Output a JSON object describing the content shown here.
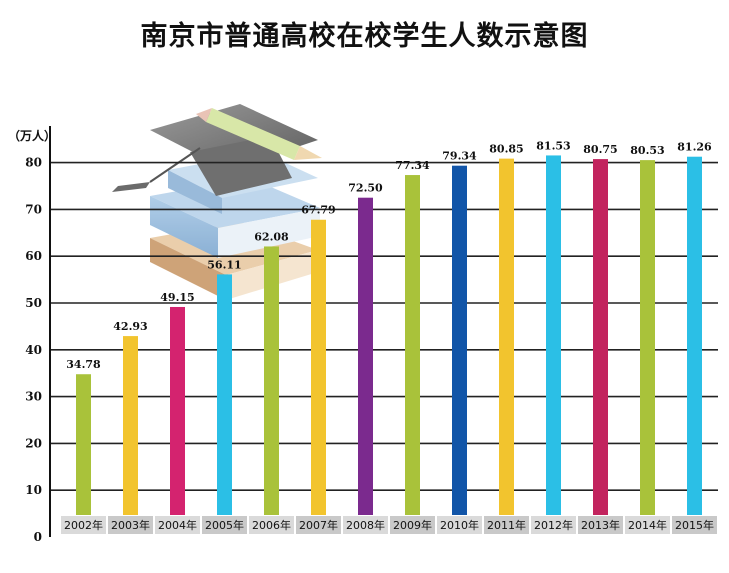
{
  "chart_data": {
    "type": "bar",
    "title": "南京市普通高校在校学生人数示意图",
    "ylabel": "（万人）",
    "xlabel": "",
    "ylim": [
      0,
      90
    ],
    "yticks": [
      0,
      10,
      20,
      30,
      40,
      50,
      60,
      70,
      80
    ],
    "grid": true,
    "legend": "none",
    "categories": [
      "2002年",
      "2003年",
      "2004年",
      "2005年",
      "2006年",
      "2007年",
      "2008年",
      "2009年",
      "2010年",
      "2011年",
      "2012年",
      "2013年",
      "2014年",
      "2015年"
    ],
    "values": [
      34.78,
      42.93,
      49.15,
      56.11,
      62.08,
      67.79,
      72.5,
      77.34,
      79.34,
      80.85,
      81.53,
      80.75,
      80.53,
      81.26
    ],
    "value_labels": [
      "34.78",
      "42.93",
      "49.15",
      "56.11",
      "62.08",
      "67.79",
      "72.50",
      "77.34",
      "79.34",
      "80.85",
      "81.53",
      "80.75",
      "80.53",
      "81.26"
    ],
    "colors": [
      "#a9c23a",
      "#f2c42e",
      "#d4236f",
      "#2bbfe6",
      "#a9c23a",
      "#f2c42e",
      "#7b2a8e",
      "#a9c23a",
      "#1155a8",
      "#f2c42e",
      "#2bbfe6",
      "#c2245e",
      "#a9c23a",
      "#2bbfe6"
    ]
  },
  "decoration": {
    "illustration": "graduation-cap-books-pencil"
  }
}
